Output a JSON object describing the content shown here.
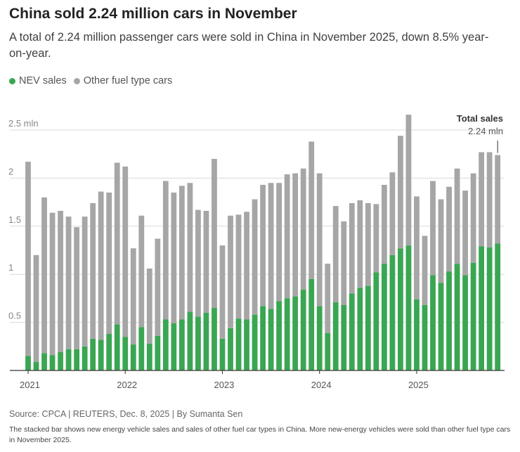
{
  "header": {
    "title": "China sold 2.24 million cars in November",
    "subtitle": "A total of 2.24 million passenger cars were sold in China in November 2025, down 8.5% year-on-year."
  },
  "legend": {
    "items": [
      {
        "label": "NEV sales",
        "color": "#3aa652"
      },
      {
        "label": "Other fuel type cars",
        "color": "#a6a6a6"
      }
    ]
  },
  "annotation": {
    "label": "Total sales",
    "value": "2.24 mln"
  },
  "footer": {
    "source": "Source: CPCA | REUTERS, Dec. 8, 2025 | By Sumanta Sen",
    "note": "The stacked bar shows new energy vehicle sales and sales of other fuel car types in China. More new-energy vehicles were sold than other fuel type cars in November 2025."
  },
  "chart_data": {
    "type": "bar",
    "stacked": true,
    "title": "China sold 2.24 million cars in November",
    "xlabel": "",
    "ylabel": "",
    "unit": "mln",
    "ylim": [
      0,
      2.5
    ],
    "yticks": [
      {
        "value": 0.5,
        "label": "0.5"
      },
      {
        "value": 1,
        "label": "1"
      },
      {
        "value": 1.5,
        "label": "1.5"
      },
      {
        "value": 2,
        "label": "2"
      },
      {
        "value": 2.5,
        "label": "2.5 mln"
      }
    ],
    "xtick_labels": [
      {
        "index": 0,
        "label": "2021"
      },
      {
        "index": 12,
        "label": "2022"
      },
      {
        "index": 24,
        "label": "2023"
      },
      {
        "index": 36,
        "label": "2024"
      },
      {
        "index": 48,
        "label": "2025"
      }
    ],
    "categories": [
      "2021-01",
      "2021-02",
      "2021-03",
      "2021-04",
      "2021-05",
      "2021-06",
      "2021-07",
      "2021-08",
      "2021-09",
      "2021-10",
      "2021-11",
      "2021-12",
      "2022-01",
      "2022-02",
      "2022-03",
      "2022-04",
      "2022-05",
      "2022-06",
      "2022-07",
      "2022-08",
      "2022-09",
      "2022-10",
      "2022-11",
      "2022-12",
      "2023-01",
      "2023-02",
      "2023-03",
      "2023-04",
      "2023-05",
      "2023-06",
      "2023-07",
      "2023-08",
      "2023-09",
      "2023-10",
      "2023-11",
      "2023-12",
      "2024-01",
      "2024-02",
      "2024-03",
      "2024-04",
      "2024-05",
      "2024-06",
      "2024-07",
      "2024-08",
      "2024-09",
      "2024-10",
      "2024-11",
      "2024-12",
      "2025-01",
      "2025-02",
      "2025-03",
      "2025-04",
      "2025-05",
      "2025-06",
      "2025-07",
      "2025-08",
      "2025-09",
      "2025-10",
      "2025-11"
    ],
    "series": [
      {
        "name": "NEV sales",
        "color": "#3aa652",
        "values": [
          0.15,
          0.09,
          0.18,
          0.16,
          0.19,
          0.22,
          0.22,
          0.25,
          0.33,
          0.32,
          0.38,
          0.48,
          0.35,
          0.27,
          0.45,
          0.28,
          0.36,
          0.53,
          0.49,
          0.53,
          0.61,
          0.56,
          0.6,
          0.65,
          0.33,
          0.44,
          0.54,
          0.53,
          0.58,
          0.67,
          0.64,
          0.72,
          0.75,
          0.77,
          0.84,
          0.95,
          0.67,
          0.39,
          0.71,
          0.68,
          0.8,
          0.86,
          0.88,
          1.02,
          1.11,
          1.2,
          1.27,
          1.3,
          0.74,
          0.68,
          0.99,
          0.91,
          1.03,
          1.11,
          0.99,
          1.12,
          1.29,
          1.28,
          1.32
        ]
      },
      {
        "name": "Other fuel type cars",
        "color": "#a6a6a6",
        "values": [
          2.02,
          1.11,
          1.62,
          1.48,
          1.47,
          1.38,
          1.27,
          1.35,
          1.41,
          1.54,
          1.47,
          1.68,
          1.77,
          1.0,
          1.16,
          0.78,
          1.01,
          1.44,
          1.36,
          1.39,
          1.34,
          1.11,
          1.06,
          1.55,
          0.97,
          1.17,
          1.08,
          1.12,
          1.2,
          1.26,
          1.31,
          1.23,
          1.29,
          1.28,
          1.26,
          1.43,
          1.38,
          0.72,
          1.0,
          0.87,
          0.94,
          0.91,
          0.86,
          0.71,
          0.82,
          0.86,
          1.17,
          1.36,
          1.07,
          0.72,
          0.98,
          0.87,
          0.88,
          0.99,
          0.88,
          0.93,
          0.98,
          0.99,
          0.92
        ]
      }
    ],
    "totals": [
      2.17,
      1.2,
      1.8,
      1.64,
      1.66,
      1.6,
      1.49,
      1.6,
      1.74,
      1.86,
      1.85,
      2.16,
      2.12,
      1.27,
      1.61,
      1.06,
      1.37,
      1.97,
      1.85,
      1.92,
      1.95,
      1.67,
      1.66,
      2.2,
      1.3,
      1.61,
      1.62,
      1.65,
      1.78,
      1.93,
      1.95,
      1.95,
      2.04,
      2.05,
      2.1,
      2.38,
      2.05,
      1.11,
      1.71,
      1.55,
      1.74,
      1.77,
      1.74,
      1.73,
      1.93,
      2.06,
      2.44,
      2.66,
      1.81,
      1.4,
      1.97,
      1.78,
      1.91,
      2.1,
      1.87,
      2.05,
      2.27,
      2.27,
      2.24
    ]
  }
}
